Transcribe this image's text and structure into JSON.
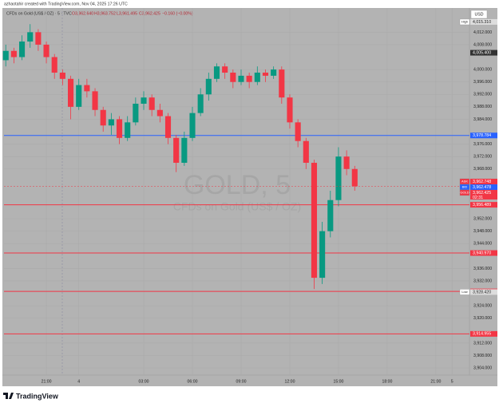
{
  "header": {
    "credit": "azhaotahir created with TradingView.com, Nov 04, 2025 17:26 UTC",
    "symbol": "CFDs on Gold (US$ / OZ) · 5 · TVC",
    "ohlc": [
      "O3,962.640",
      "H3,963.752",
      "L3,961.495",
      "C3,962.425",
      "−0.160 (−0.00%)"
    ]
  },
  "chart_data": {
    "type": "candlestick",
    "currency": "USD",
    "watermark": {
      "title": "GOLD, 5",
      "subtitle": "CFDs on Gold (US$ / OZ)"
    },
    "x": [
      18.5,
      19.0,
      19.5,
      20.0,
      20.5,
      21.0,
      21.5,
      22.0,
      22.5,
      23.0,
      23.5,
      24.0,
      24.5,
      25.0,
      25.5,
      26.0,
      26.5,
      27.0,
      27.5,
      28.0,
      28.5,
      29.0,
      29.5,
      30.0,
      30.5,
      31.0,
      31.5,
      32.0,
      32.5,
      33.0,
      33.5,
      34.0,
      34.5,
      35.0,
      35.5,
      36.0,
      36.5,
      37.0,
      37.5,
      38.0,
      38.5,
      39.0,
      39.5,
      40.0
    ],
    "open": [
      4003,
      4006,
      4004,
      4009,
      4012,
      4008,
      4004,
      3999,
      3997,
      3988,
      3995,
      3993,
      3987,
      3982,
      3984,
      3978,
      3983,
      3989,
      3991,
      3987,
      3985,
      3978,
      3970,
      3978,
      3986,
      3992,
      3997,
      4001,
      3999,
      3996,
      3998,
      3996,
      3999,
      3998,
      4000,
      3991,
      3983,
      3977,
      3970,
      3933,
      3948,
      3958,
      3972,
      3968
    ],
    "high": [
      4008,
      4007,
      4011,
      4014.6,
      4013,
      4009,
      4005,
      4000,
      3998,
      3997,
      3997,
      3994,
      3988,
      3986,
      3985,
      3985,
      3991,
      3993,
      3992,
      3989,
      3986,
      3979,
      3980,
      3988,
      3994,
      3999,
      4002,
      4002,
      4000,
      4000,
      3999,
      4001,
      4000,
      4001,
      4001,
      3992,
      3984,
      3978,
      3971,
      3951,
      3961,
      3975,
      3974,
      3969
    ],
    "low": [
      4001,
      4002,
      4003,
      4007,
      4006,
      4002,
      3997,
      3995,
      3984,
      3987,
      3991,
      3985,
      3980,
      3979,
      3976,
      3977,
      3982,
      3987,
      3985,
      3983,
      3976,
      3967,
      3969,
      3977,
      3985,
      3990,
      3996,
      3997,
      3994,
      3995,
      3994,
      3995,
      3996,
      3997,
      3989,
      3981,
      3975,
      3968,
      3929.4,
      3931,
      3946,
      3956,
      3966,
      3961
    ],
    "close": [
      4006,
      4004,
      4009,
      4012,
      4008,
      4004,
      3999,
      3997,
      3988,
      3995,
      3993,
      3987,
      3982,
      3984,
      3978,
      3983,
      3989,
      3991,
      3987,
      3985,
      3978,
      3970,
      3978,
      3986,
      3992,
      3997,
      4001,
      3999,
      3996,
      3998,
      3996,
      3999,
      3998,
      4000,
      3991,
      3983,
      3977,
      3970,
      3933,
      3948,
      3958,
      3972,
      3968,
      3962.425
    ],
    "up_color": "#089981",
    "down_color": "#f23645",
    "xlim": [
      18.39,
      47.07
    ],
    "xticks": [
      {
        "value": 21,
        "label": "21:00"
      },
      {
        "value": 23,
        "label": "4"
      },
      {
        "value": 27,
        "label": "03:00"
      },
      {
        "value": 30,
        "label": "06:00"
      },
      {
        "value": 33,
        "label": "09:00"
      },
      {
        "value": 36,
        "label": "12:00"
      },
      {
        "value": 39,
        "label": "15:00"
      },
      {
        "value": 42,
        "label": "18:00"
      },
      {
        "value": 45,
        "label": "21:00"
      },
      {
        "value": 46,
        "label": "5"
      }
    ],
    "ylim": [
      3901.7,
      4019.8
    ],
    "yticks": [
      {
        "value": 3904,
        "label": "3,904.000"
      },
      {
        "value": 3908,
        "label": "3,908.000"
      },
      {
        "value": 3912,
        "label": "3,912.000"
      },
      {
        "value": 3920,
        "label": "3,920.000"
      },
      {
        "value": 3924,
        "label": "3,924.000"
      },
      {
        "value": 3932,
        "label": "3,932.000"
      },
      {
        "value": 3936,
        "label": "3,936.000"
      },
      {
        "value": 3944,
        "label": "3,944.000"
      },
      {
        "value": 3948,
        "label": "3,948.000"
      },
      {
        "value": 3952,
        "label": "3,952.000"
      },
      {
        "value": 3968,
        "label": "3,968.000"
      },
      {
        "value": 3972,
        "label": "3,972.000"
      },
      {
        "value": 3976,
        "label": "3,976.000"
      },
      {
        "value": 3984,
        "label": "3,984.000"
      },
      {
        "value": 3988,
        "label": "3,988.000"
      },
      {
        "value": 3992,
        "label": "3,992.000"
      },
      {
        "value": 3996,
        "label": "3,996.000"
      },
      {
        "value": 4000,
        "label": "4,000.000"
      },
      {
        "value": 4008,
        "label": "4,008.000"
      },
      {
        "value": 4012,
        "label": "4,012.000"
      }
    ],
    "grid": true,
    "levels": [
      {
        "value": 3978.784,
        "label": "3,978.784",
        "color": "#2962ff"
      },
      {
        "value": 3956.489,
        "label": "3,956.489",
        "color": "#f23645"
      },
      {
        "value": 3940.97,
        "label": "3,940.970",
        "color": "#f23645"
      },
      {
        "value": 3928.62,
        "label": "3,928.620",
        "color": "#f23645"
      },
      {
        "value": 3914.955,
        "label": "3,914.955",
        "color": "#f23645"
      }
    ],
    "price_labels": [
      {
        "name": "High",
        "value": 4015.31,
        "label": "4,015.310",
        "color": "#dddddd"
      },
      {
        "value": 4005.4,
        "label": "4,005.400",
        "color": "#333333"
      },
      {
        "name": "ASK",
        "value": 3962.748,
        "label": "3,962.748",
        "color": "#f23645"
      },
      {
        "name": "BID",
        "value": 3962.478,
        "label": "3,962.478",
        "color": "#2962ff"
      },
      {
        "name": "GOLD",
        "value": 3962.425,
        "label": "3,962.425",
        "countdown": "02:31",
        "color": "#f23645"
      },
      {
        "name": "Low",
        "value": 3928.42,
        "label": "3,928.420",
        "color": "#dddddd"
      }
    ]
  },
  "footer": {
    "brand": "TradingView"
  }
}
